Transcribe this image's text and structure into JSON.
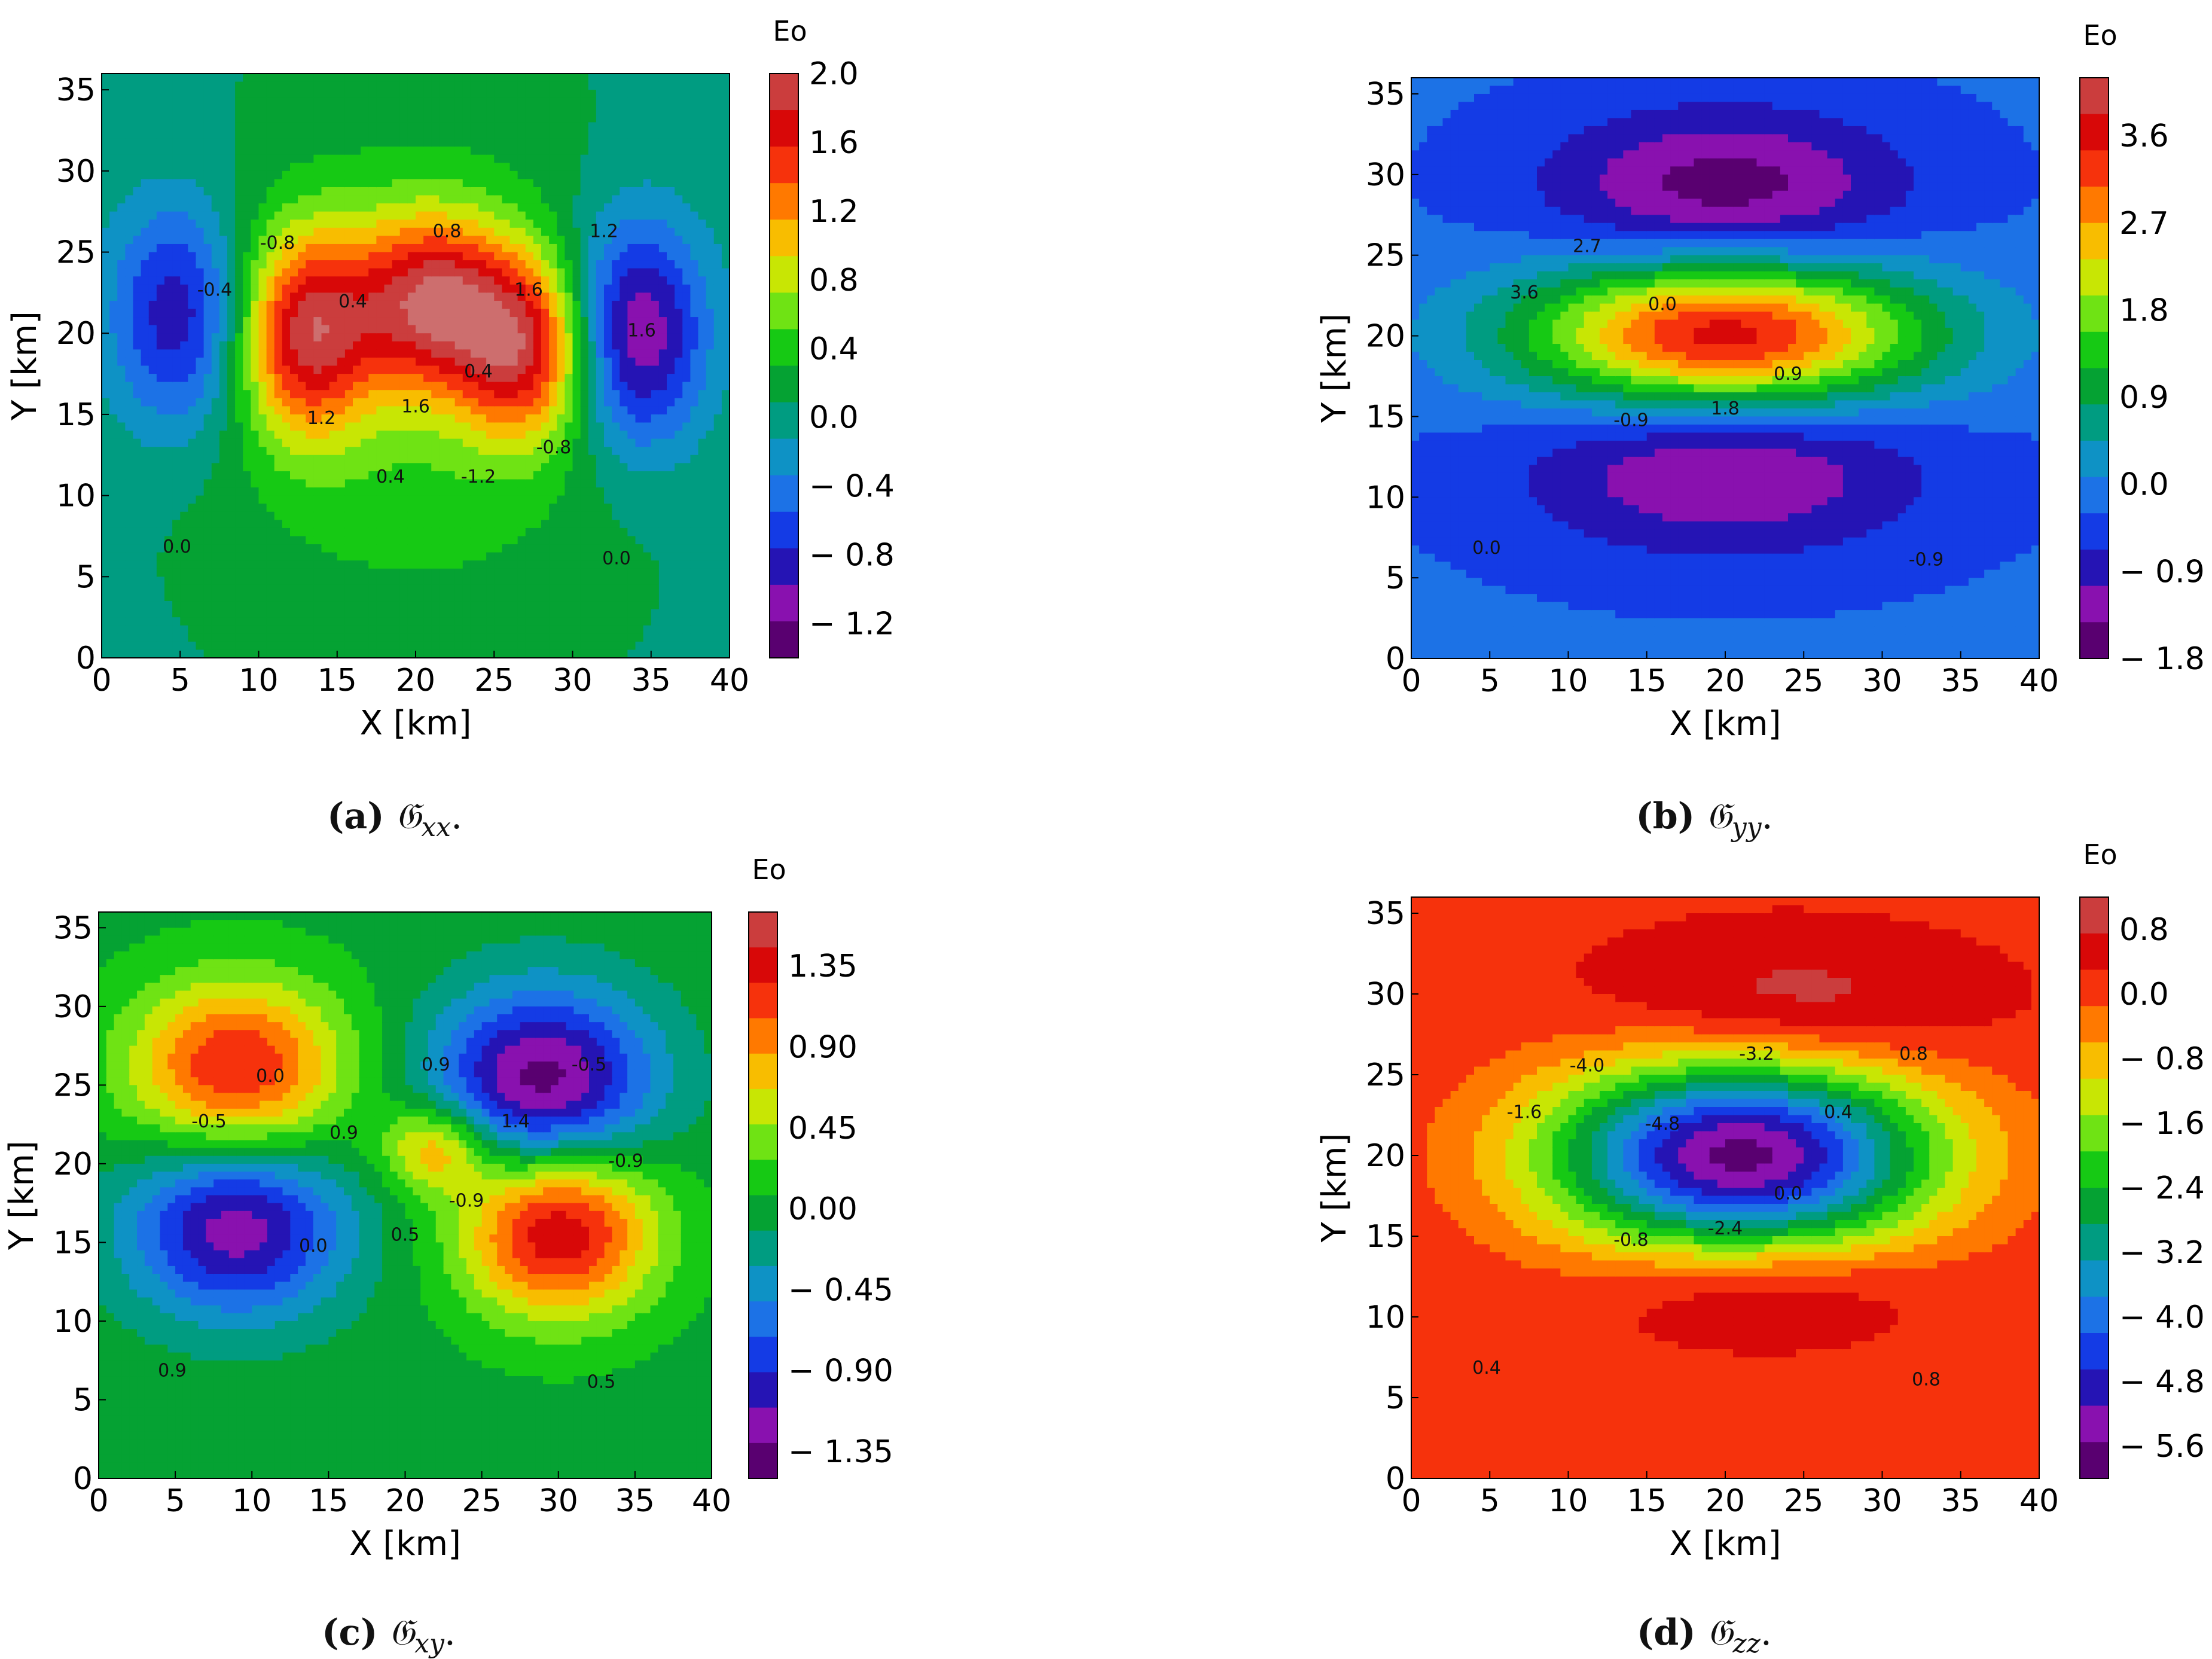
{
  "figure": {
    "panels": [
      {
        "id": "a",
        "caption_tag": "(a)",
        "caption_sym": "𝔊",
        "caption_sub": "xx",
        "caption_end": "."
      },
      {
        "id": "b",
        "caption_tag": "(b)",
        "caption_sym": "𝔊",
        "caption_sub": "yy",
        "caption_end": "."
      },
      {
        "id": "c",
        "caption_tag": "(c)",
        "caption_sym": "𝔊",
        "caption_sub": "xy",
        "caption_end": "."
      },
      {
        "id": "d",
        "caption_tag": "(d)",
        "caption_sym": "𝔊",
        "caption_sub": "zz",
        "caption_end": "."
      }
    ]
  },
  "chart_data": [
    {
      "type": "heatmap",
      "panel": "a",
      "title": "",
      "xlabel": "X [km]",
      "ylabel": "Y [km]",
      "xlim": [
        0,
        40
      ],
      "ylim": [
        0,
        36
      ],
      "xticks": [
        0,
        5,
        10,
        15,
        20,
        25,
        30,
        35,
        40
      ],
      "yticks": [
        0,
        5,
        10,
        15,
        20,
        25,
        30,
        35
      ],
      "colorbar": {
        "label": "Eo",
        "tick_labels": [
          "2.0",
          "1.6",
          "1.2",
          "0.8",
          "0.4",
          "0.0",
          "− 0.4",
          "− 0.8",
          "− 1.2"
        ],
        "tick_values": [
          2.0,
          1.6,
          1.2,
          0.8,
          0.4,
          0.0,
          -0.4,
          -0.8,
          -1.2
        ],
        "range": [
          -1.4,
          2.0
        ]
      },
      "contour_labels": [
        "0.0",
        "0.0",
        "-0.4",
        "-0.8",
        "0.4",
        "0.4",
        "1.6",
        "1.2",
        "0.8",
        "1.6",
        "1.2",
        "1.6",
        "-0.8",
        "-1.2",
        "0.4"
      ],
      "background_value": 0.02,
      "sources": [
        {
          "x": 5,
          "y": 21,
          "amp": -1.05,
          "sx": 3.2,
          "sy": 5.0
        },
        {
          "x": 34,
          "y": 20,
          "amp": -1.35,
          "sx": 3.2,
          "sy": 5.0
        },
        {
          "x": 13,
          "y": 20,
          "amp": 1.55,
          "sx": 3.0,
          "sy": 4.5
        },
        {
          "x": 21,
          "y": 22,
          "amp": 1.55,
          "sx": 3.5,
          "sy": 3.8
        },
        {
          "x": 27,
          "y": 19,
          "amp": 1.45,
          "sx": 3.0,
          "sy": 4.0
        },
        {
          "x": 20,
          "y": 17,
          "amp": 0.45,
          "sx": 10.0,
          "sy": 12.0
        }
      ]
    },
    {
      "type": "heatmap",
      "panel": "b",
      "title": "",
      "xlabel": "X [km]",
      "ylabel": "Y [km]",
      "xlim": [
        0,
        40
      ],
      "ylim": [
        0,
        36
      ],
      "xticks": [
        0,
        5,
        10,
        15,
        20,
        25,
        30,
        35,
        40
      ],
      "yticks": [
        0,
        5,
        10,
        15,
        20,
        25,
        30,
        35
      ],
      "colorbar": {
        "label": "Eo",
        "tick_labels": [
          "3.6",
          "2.7",
          "1.8",
          "0.9",
          "0.0",
          "− 0.9",
          "− 1.8"
        ],
        "tick_values": [
          3.6,
          2.7,
          1.8,
          0.9,
          0.0,
          -0.9,
          -1.8
        ],
        "range": [
          -1.8,
          4.2
        ]
      },
      "contour_labels": [
        "0.0",
        "-0.9",
        "3.6",
        "2.7",
        "0.9",
        "0.0",
        "1.8",
        "-0.9"
      ],
      "background_value": -0.25,
      "sources": [
        {
          "x": 20,
          "y": 20,
          "amp": 4.0,
          "sx": 9.0,
          "sy": 3.3
        },
        {
          "x": 20,
          "y": 29,
          "amp": -1.4,
          "sx": 8.0,
          "sy": 3.5
        },
        {
          "x": 20,
          "y": 12,
          "amp": -1.3,
          "sx": 9.0,
          "sy": 3.8
        }
      ]
    },
    {
      "type": "heatmap",
      "panel": "c",
      "title": "",
      "xlabel": "X [km]",
      "ylabel": "Y [km]",
      "xlim": [
        0,
        40
      ],
      "ylim": [
        0,
        36
      ],
      "xticks": [
        0,
        5,
        10,
        15,
        20,
        25,
        30,
        35,
        40
      ],
      "yticks": [
        0,
        5,
        10,
        15,
        20,
        25,
        30,
        35
      ],
      "colorbar": {
        "label": "Eo",
        "tick_labels": [
          "1.35",
          "0.90",
          "0.45",
          "0.00",
          "− 0.45",
          "− 0.90",
          "− 1.35"
        ],
        "tick_values": [
          1.35,
          0.9,
          0.45,
          0.0,
          -0.45,
          -0.9,
          -1.35
        ],
        "range": [
          -1.5,
          1.65
        ]
      },
      "contour_labels": [
        "0.9",
        "0.5",
        "-0.5",
        "0.0",
        "-0.9",
        "0.9",
        "0.5",
        "0.0",
        "0.9",
        "1.4",
        "-0.5",
        "-0.9"
      ],
      "background_value": 0.0,
      "sources": [
        {
          "x": 9,
          "y": 26,
          "amp": 1.3,
          "sx": 5.0,
          "sy": 4.0
        },
        {
          "x": 30,
          "y": 16,
          "amp": 1.5,
          "sx": 4.5,
          "sy": 4.0
        },
        {
          "x": 9,
          "y": 16,
          "amp": -1.25,
          "sx": 5.0,
          "sy": 4.0
        },
        {
          "x": 29,
          "y": 25,
          "amp": -1.45,
          "sx": 5.0,
          "sy": 4.2
        },
        {
          "x": 22,
          "y": 21,
          "amp": 0.9,
          "sx": 2.5,
          "sy": 2.0
        }
      ]
    },
    {
      "type": "heatmap",
      "panel": "d",
      "title": "",
      "xlabel": "X [km]",
      "ylabel": "Y [km]",
      "xlim": [
        0,
        40
      ],
      "ylim": [
        0,
        36
      ],
      "xticks": [
        0,
        5,
        10,
        15,
        20,
        25,
        30,
        35,
        40
      ],
      "yticks": [
        0,
        5,
        10,
        15,
        20,
        25,
        30,
        35
      ],
      "colorbar": {
        "label": "Eo",
        "tick_labels": [
          "0.8",
          "0.0",
          "− 0.8",
          "− 1.6",
          "− 2.4",
          "− 3.2",
          "− 4.0",
          "− 4.8",
          "− 5.6"
        ],
        "tick_values": [
          0.8,
          0.0,
          -0.8,
          -1.6,
          -2.4,
          -3.2,
          -4.0,
          -4.8,
          -5.6
        ],
        "range": [
          -6.0,
          1.2
        ]
      },
      "contour_labels": [
        "0.4",
        "0.8",
        "-1.6",
        "-4.0",
        "0.0",
        "-4.8",
        "-2.4",
        "-0.8",
        "-3.2",
        "0.4",
        "0.8"
      ],
      "background_value": 0.2,
      "sources": [
        {
          "x": 21,
          "y": 20,
          "amp": -5.9,
          "sx": 8.5,
          "sy": 4.2
        },
        {
          "x": 24,
          "y": 29,
          "amp": 0.95,
          "sx": 8.0,
          "sy": 3.0
        },
        {
          "x": 22,
          "y": 12,
          "amp": 0.9,
          "sx": 7.0,
          "sy": 2.4
        }
      ]
    }
  ]
}
